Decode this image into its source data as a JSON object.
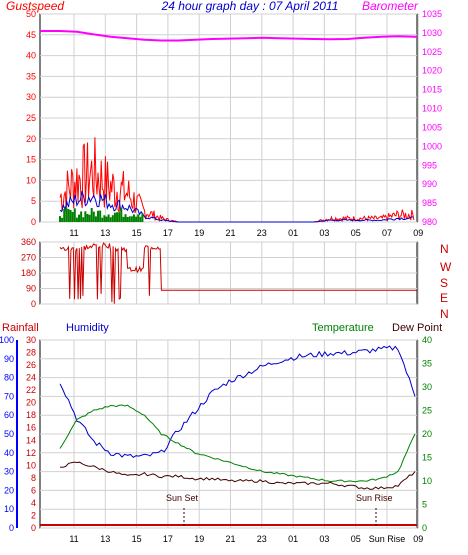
{
  "header": {
    "left_label": "Gustspeed",
    "title": "24 hour graph day : 07 April 2011",
    "right_label": "Barometer"
  },
  "colors": {
    "gust": "#ff0000",
    "wind": "#0000cc",
    "barometer": "#ff00ff",
    "rain": "#008000",
    "humidity": "#0000cc",
    "temperature": "#008000",
    "dewpoint": "#400000",
    "rainfall": "#cc0000",
    "axis_left": "#0000ff",
    "axis_right": "#ff00ff",
    "axis_temp": "#008000",
    "wind_dir": "#cc0000"
  },
  "chart_data": [
    {
      "type": "line",
      "x_tick_labels": [
        "11",
        "13",
        "15",
        "17",
        "19",
        "21",
        "23",
        "01",
        "03",
        "05",
        "07",
        "09"
      ],
      "y_left_ticks": [
        "0",
        "5",
        "10",
        "15",
        "20",
        "25",
        "30",
        "35",
        "40",
        "45",
        "50"
      ],
      "y_right_ticks": [
        "980",
        "985",
        "990",
        "995",
        "1000",
        "1005",
        "1010",
        "1015",
        "1020",
        "1025",
        "1030",
        "1035"
      ],
      "ylim_left": [
        0,
        50
      ],
      "ylim_right": [
        980,
        1035
      ],
      "series": [
        {
          "name": "Gustspeed",
          "values_by_hour": [
            7,
            12,
            14,
            10,
            8,
            3,
            1,
            0,
            0,
            0,
            0,
            0,
            0,
            0,
            0,
            0,
            1,
            1,
            1,
            1,
            2,
            2
          ]
        },
        {
          "name": "Barometer",
          "values_by_hour": [
            1030.5,
            1030.3,
            1029.6,
            1029.0,
            1028.6,
            1028.2,
            1028.0,
            1028.0,
            1028.2,
            1028.4,
            1028.5,
            1028.6,
            1028.7,
            1028.6,
            1028.5,
            1028.4,
            1028.3,
            1028.4,
            1028.7,
            1029.0,
            1029.1,
            1029.0
          ]
        }
      ]
    },
    {
      "type": "scatter",
      "y_labels": [
        "360",
        "270",
        "180",
        "90",
        "0"
      ],
      "ylim": [
        0,
        360
      ],
      "side_labels": [
        "N",
        "W",
        "S",
        "E",
        "N"
      ],
      "series": [
        {
          "values_by_hour": [
            320,
            330,
            340,
            320,
            200,
            330,
            80,
            80,
            80,
            80,
            80,
            80,
            80,
            80,
            80,
            80,
            80,
            80,
            80,
            80,
            80,
            80
          ]
        }
      ]
    },
    {
      "type": "line",
      "title_left_1": "Rainfall",
      "title_left_2": "Humidity",
      "title_right_1": "Temperature",
      "title_right_2": "Dew Point",
      "x_tick_labels": [
        "11",
        "13",
        "15",
        "17",
        "19",
        "21",
        "23",
        "01",
        "03",
        "05",
        "Sun Rise",
        "09"
      ],
      "y_humidity_ticks": [
        "0",
        "10",
        "20",
        "30",
        "40",
        "50",
        "60",
        "70",
        "80",
        "90",
        "100"
      ],
      "y_rain_ticks": [
        "0",
        "2",
        "4",
        "6",
        "8",
        "10",
        "12",
        "14",
        "16",
        "18",
        "20",
        "22",
        "24",
        "26",
        "28",
        "30"
      ],
      "y_temp_ticks": [
        "0",
        "5",
        "10",
        "15",
        "20",
        "25",
        "30",
        "35",
        "40"
      ],
      "annotations": {
        "sunset": "Sun Set",
        "sunrise": "Sun Rise"
      },
      "series": [
        {
          "name": "Humidity",
          "values_by_hour": [
            78,
            58,
            46,
            40,
            38,
            38,
            40,
            52,
            62,
            72,
            78,
            82,
            86,
            89,
            91,
            92,
            93,
            93,
            94,
            95,
            96,
            70
          ]
        },
        {
          "name": "Temperature",
          "values_by_hour": [
            17,
            23,
            25,
            26,
            26,
            24,
            20,
            18,
            16,
            15,
            14,
            13,
            12,
            11.5,
            11,
            10.5,
            10,
            10,
            10,
            10.5,
            12,
            20
          ]
        },
        {
          "name": "Dew Point",
          "values_by_hour": [
            13,
            14,
            13,
            12,
            11,
            11.5,
            11,
            11,
            10.5,
            10.5,
            10,
            10,
            10,
            9.5,
            9.5,
            9.5,
            9.5,
            9,
            8.5,
            8.5,
            9,
            12
          ]
        },
        {
          "name": "Rainfall",
          "values_by_hour": [
            0,
            0,
            0,
            0,
            0,
            0,
            0,
            0,
            0,
            0,
            0,
            0,
            0,
            0,
            0,
            0,
            0,
            0,
            0,
            0,
            0,
            0
          ]
        }
      ]
    }
  ]
}
